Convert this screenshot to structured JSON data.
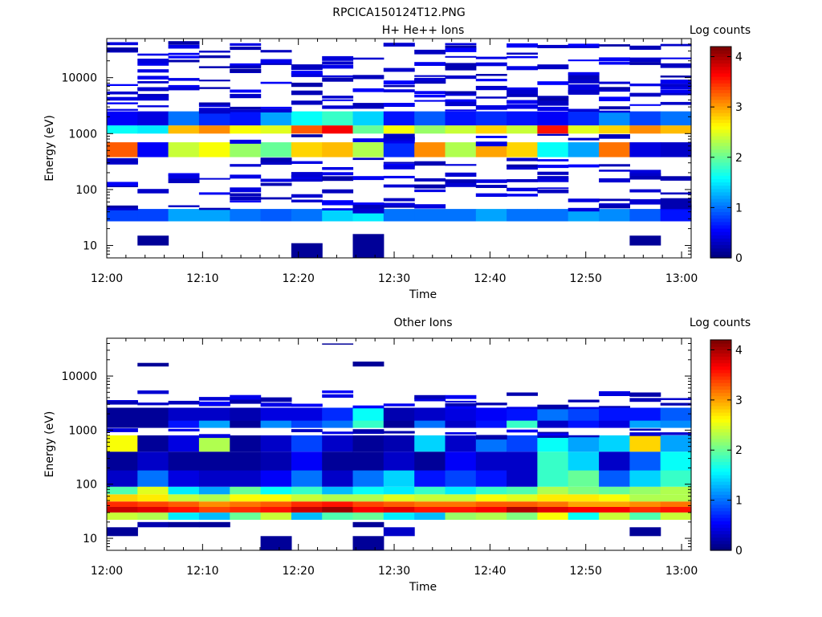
{
  "figure_title": "RPCICA150124T12.PNG",
  "colors": {
    "background": "#ffffff",
    "axis": "#000000",
    "colormap": "jet"
  },
  "chart_data": [
    {
      "type": "heatmap",
      "title": "H+ He++ Ions",
      "xlabel": "Time",
      "ylabel": "Energy (eV)",
      "x_ticks": [
        "12:00",
        "12:10",
        "12:20",
        "12:30",
        "12:40",
        "12:50",
        "13:00"
      ],
      "x_range_minutes": [
        0,
        61
      ],
      "y_scale": "log",
      "y_ticks": [
        "10",
        "100",
        "1000",
        "10000"
      ],
      "y_range": [
        6,
        50000
      ],
      "colorbar": {
        "label": "Log counts",
        "range": [
          0,
          4.2
        ],
        "ticks": [
          "0",
          "1",
          "2",
          "3",
          "4"
        ]
      },
      "time_bins": 19,
      "bands": [
        {
          "emin": 27,
          "emax": 45,
          "values": [
            0.8,
            0.8,
            1.2,
            1.2,
            1.0,
            0.9,
            1.0,
            1.4,
            1.5,
            1.0,
            1.0,
            1.0,
            1.2,
            1.0,
            1.0,
            1.2,
            1.1,
            0.9,
            0.6
          ]
        },
        {
          "emin": 380,
          "emax": 700,
          "values": [
            3.3,
            0.5,
            2.4,
            2.6,
            2.2,
            2.0,
            2.8,
            2.9,
            2.3,
            0.7,
            3.1,
            2.3,
            3.0,
            2.8,
            1.6,
            1.2,
            3.2,
            0.4,
            0.3
          ]
        },
        {
          "emin": 1000,
          "emax": 1400,
          "values": [
            1.6,
            1.5,
            2.9,
            3.1,
            2.6,
            2.5,
            3.3,
            3.7,
            2.0,
            2.6,
            2.2,
            2.4,
            2.8,
            2.4,
            3.6,
            2.5,
            2.8,
            3.1,
            2.9
          ]
        },
        {
          "emin": 1400,
          "emax": 2500,
          "values": [
            0.5,
            0.4,
            1.0,
            0.7,
            0.6,
            1.2,
            1.6,
            1.8,
            1.4,
            0.6,
            0.9,
            0.6,
            0.7,
            0.6,
            0.5,
            0.7,
            1.1,
            0.8,
            1.0
          ]
        }
      ],
      "patches": [
        {
          "bin": 1,
          "emin": 10,
          "emax": 15,
          "value": 0.1
        },
        {
          "bin": 6,
          "emin": 6,
          "emax": 11,
          "value": 0.1
        },
        {
          "bin": 8,
          "emin": 6,
          "emax": 16,
          "value": 0.1
        },
        {
          "bin": 17,
          "emin": 10,
          "emax": 15,
          "value": 0.1
        },
        {
          "bin": 18,
          "emin": 45,
          "emax": 70,
          "value": 0.2
        }
      ]
    },
    {
      "type": "heatmap",
      "title": "Other Ions",
      "xlabel": "Time",
      "ylabel": "Energy (eV)",
      "x_ticks": [
        "12:00",
        "12:10",
        "12:20",
        "12:30",
        "12:40",
        "12:50",
        "13:00"
      ],
      "x_range_minutes": [
        0,
        61
      ],
      "y_scale": "log",
      "y_ticks": [
        "10",
        "100",
        "1000",
        "10000"
      ],
      "y_range": [
        6,
        50000
      ],
      "colorbar": {
        "label": "Log counts",
        "range": [
          0,
          4.2
        ],
        "ticks": [
          "0",
          "1",
          "2",
          "3",
          "4"
        ]
      },
      "time_bins": 19,
      "bands": [
        {
          "emin": 22,
          "emax": 30,
          "values": [
            2.4,
            2.3,
            1.5,
            1.3,
            2.0,
            2.4,
            1.3,
            1.9,
            2.0,
            1.5,
            1.3,
            2.2,
            2.3,
            2.1,
            2.6,
            1.6,
            2.4,
            1.9,
            2.4
          ]
        },
        {
          "emin": 30,
          "emax": 38,
          "values": [
            3.9,
            3.8,
            3.6,
            3.4,
            3.5,
            3.6,
            3.9,
            4.1,
            3.7,
            3.8,
            3.6,
            3.6,
            3.7,
            4.0,
            3.8,
            3.7,
            3.7,
            3.5,
            3.6
          ]
        },
        {
          "emin": 38,
          "emax": 48,
          "values": [
            3.5,
            3.4,
            3.3,
            3.1,
            3.2,
            3.3,
            3.5,
            3.6,
            3.4,
            3.3,
            3.2,
            3.2,
            3.3,
            3.3,
            3.2,
            3.0,
            3.0,
            3.1,
            3.2
          ]
        },
        {
          "emin": 48,
          "emax": 65,
          "values": [
            2.8,
            2.7,
            2.4,
            2.3,
            2.6,
            2.6,
            2.4,
            2.3,
            2.3,
            2.5,
            2.4,
            2.4,
            2.6,
            2.5,
            2.7,
            2.7,
            2.6,
            2.3,
            2.3
          ]
        },
        {
          "emin": 65,
          "emax": 90,
          "values": [
            1.9,
            2.5,
            1.5,
            1.2,
            2.0,
            1.6,
            1.8,
            1.3,
            1.6,
            1.5,
            1.8,
            1.5,
            1.8,
            1.9,
            2.3,
            2.1,
            2.0,
            2.2,
            2.3
          ]
        },
        {
          "emin": 90,
          "emax": 180,
          "values": [
            0.3,
            1.0,
            0.4,
            0.3,
            0.3,
            0.5,
            1.0,
            0.3,
            1.0,
            1.4,
            0.6,
            0.8,
            0.6,
            0.3,
            1.8,
            2.0,
            0.9,
            1.4,
            1.8
          ]
        },
        {
          "emin": 180,
          "emax": 400,
          "values": [
            0.1,
            0.3,
            0.1,
            0.1,
            0.1,
            0.2,
            0.5,
            0.1,
            0.1,
            0.3,
            0.1,
            0.5,
            0.3,
            0.3,
            1.8,
            1.4,
            0.3,
            0.9,
            1.6
          ]
        },
        {
          "emin": 400,
          "emax": 800,
          "values": [
            2.6,
            0.1,
            0.4,
            2.3,
            0.1,
            0.3,
            0.8,
            0.3,
            0.1,
            0.2,
            1.4,
            0.3,
            1.0,
            0.8,
            1.6,
            1.2,
            1.4,
            2.8,
            1.2
          ]
        },
        {
          "emin": 1100,
          "emax": 1500,
          "values": [
            0.1,
            0.1,
            0.6,
            1.2,
            0.1,
            1.1,
            0.8,
            1.0,
            1.8,
            0.1,
            1.0,
            0.3,
            0.6,
            1.8,
            0.3,
            0.6,
            0.4,
            1.2,
            1.1
          ]
        },
        {
          "emin": 1500,
          "emax": 2600,
          "values": [
            0.1,
            0.1,
            0.3,
            0.3,
            0.2,
            0.4,
            0.4,
            0.7,
            1.6,
            0.2,
            0.3,
            0.4,
            0.5,
            0.6,
            1.0,
            0.8,
            0.6,
            0.6,
            0.9
          ]
        }
      ],
      "patches": [
        {
          "bin": 0,
          "emin": 11,
          "emax": 16,
          "value": 0.1
        },
        {
          "bin": 1,
          "emin": 16,
          "emax": 20,
          "value": 0.2
        },
        {
          "bin": 2,
          "emin": 16,
          "emax": 20,
          "value": 0.1
        },
        {
          "bin": 3,
          "emin": 16,
          "emax": 20,
          "value": 0.1
        },
        {
          "bin": 5,
          "emin": 6,
          "emax": 11,
          "value": 0.1
        },
        {
          "bin": 8,
          "emin": 6,
          "emax": 11,
          "value": 0.1
        },
        {
          "bin": 8,
          "emin": 16,
          "emax": 20,
          "value": 0.1
        },
        {
          "bin": 9,
          "emin": 11,
          "emax": 16,
          "value": 0.3
        },
        {
          "bin": 17,
          "emin": 11,
          "emax": 16,
          "value": 0.1
        },
        {
          "bin": 1,
          "emin": 15000,
          "emax": 17500,
          "value": 0.1
        },
        {
          "bin": 8,
          "emin": 15000,
          "emax": 18500,
          "value": 0.1
        },
        {
          "bin": 7,
          "emin": 38000,
          "emax": 40000,
          "value": 0.1
        }
      ]
    }
  ]
}
